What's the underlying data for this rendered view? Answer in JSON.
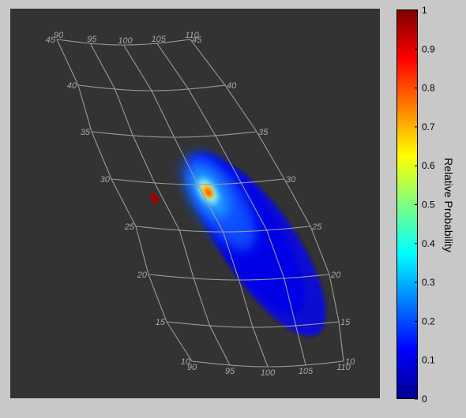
{
  "chart_data": {
    "type": "heatmap",
    "projection": "conic",
    "lon_ticks": [
      90,
      95,
      100,
      105,
      110
    ],
    "lat_ticks": [
      10,
      15,
      20,
      25,
      30,
      35,
      40,
      45
    ],
    "lon_tick_labels": [
      "90",
      "95",
      "100",
      "105",
      "110"
    ],
    "lat_tick_labels": [
      "10",
      "15",
      "20",
      "25",
      "30",
      "35",
      "40",
      "45"
    ],
    "lon_range": [
      90,
      110
    ],
    "lat_range": [
      10,
      45
    ],
    "grid": true,
    "colormap": "jet",
    "colorbar": {
      "label": "Relative Probability",
      "range": [
        0,
        1
      ],
      "ticks": [
        0,
        0.1,
        0.2,
        0.3,
        0.4,
        0.5,
        0.6,
        0.7,
        0.8,
        0.9,
        1
      ],
      "tick_labels": [
        "0",
        "0.1",
        "0.2",
        "0.3",
        "0.4",
        "0.5",
        "0.6",
        "0.7",
        "0.8",
        "0.9",
        "1"
      ],
      "placement": "right"
    },
    "peak": {
      "lon": 94,
      "lat": 28.3,
      "value": 1
    },
    "region_extent": {
      "lon": [
        92,
        110
      ],
      "lat": [
        11,
        32
      ]
    }
  }
}
